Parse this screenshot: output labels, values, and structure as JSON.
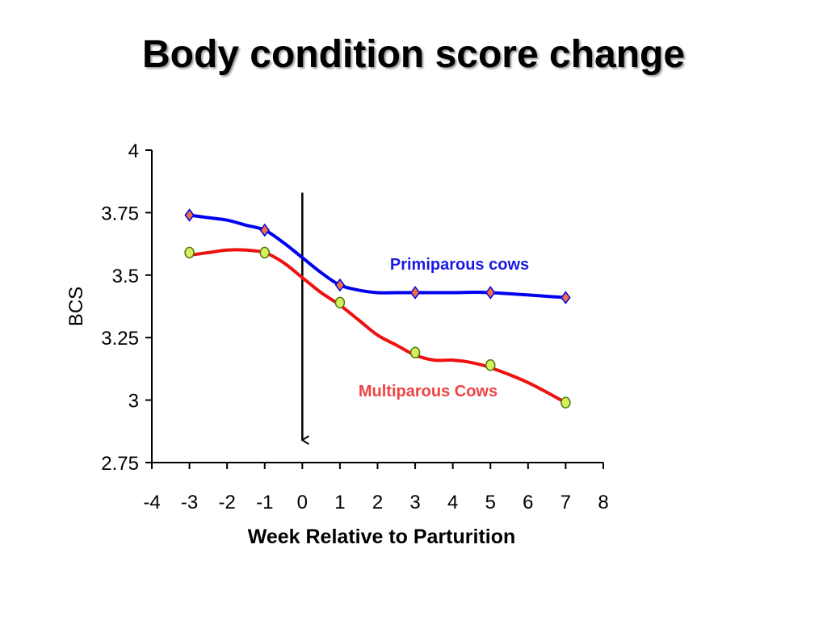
{
  "chart_data": {
    "type": "line",
    "title": "Body condition score change",
    "xlabel": "Week Relative to Parturition",
    "ylabel": "BCS",
    "xlim": [
      -4,
      8
    ],
    "ylim": [
      2.75,
      4
    ],
    "xticks": [
      "-4",
      "-3",
      "-2",
      "-1",
      "0",
      "1",
      "2",
      "3",
      "4",
      "5",
      "6",
      "7",
      "8"
    ],
    "yticks": [
      "2.75",
      "3",
      "3.25",
      "3.5",
      "3.75",
      "4"
    ],
    "grid": false,
    "legend": "none",
    "annotations": [
      {
        "type": "arrow-down",
        "x": 0,
        "y_from": 3.83,
        "y_to": 2.84
      }
    ],
    "series": [
      {
        "name": "Primiparous cows",
        "color": "#0000ee",
        "marker": "diamond",
        "marker_color": "#f07040",
        "curve_x": [
          -3,
          -2.5,
          -2,
          -1.5,
          -1,
          -0.5,
          0,
          0.5,
          1,
          1.5,
          2,
          2.5,
          3,
          4,
          5,
          7
        ],
        "curve_y": [
          3.74,
          3.73,
          3.72,
          3.7,
          3.68,
          3.63,
          3.57,
          3.51,
          3.46,
          3.44,
          3.43,
          3.43,
          3.43,
          3.43,
          3.43,
          3.41
        ],
        "marker_x": [
          -3,
          -1,
          1,
          3,
          5,
          7
        ],
        "marker_y": [
          3.74,
          3.68,
          3.46,
          3.43,
          3.43,
          3.41
        ]
      },
      {
        "name": "Multiparous Cows",
        "color": "#ee1111",
        "marker": "circle",
        "marker_color": "#d8f060",
        "curve_x": [
          -3,
          -2.5,
          -2,
          -1.5,
          -1,
          -0.5,
          0,
          0.5,
          1,
          1.5,
          2,
          2.5,
          3,
          3.5,
          4,
          4.5,
          5,
          6,
          7
        ],
        "curve_y": [
          3.58,
          3.59,
          3.6,
          3.6,
          3.59,
          3.55,
          3.49,
          3.43,
          3.38,
          3.32,
          3.26,
          3.22,
          3.18,
          3.16,
          3.16,
          3.15,
          3.13,
          3.07,
          2.99
        ],
        "marker_x": [
          -3,
          -1,
          1,
          3,
          5,
          7
        ],
        "marker_y": [
          3.59,
          3.59,
          3.39,
          3.19,
          3.14,
          2.99
        ]
      }
    ]
  }
}
